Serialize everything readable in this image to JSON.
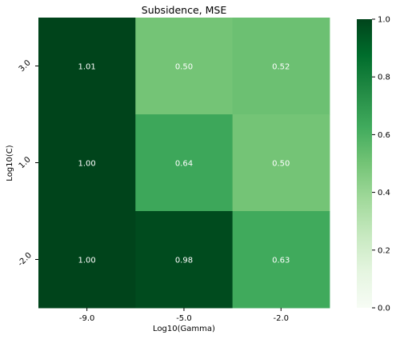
{
  "chart_data": {
    "type": "heatmap",
    "title": "Subsidence, MSE",
    "xlabel": "Log10(Gamma)",
    "ylabel": "Log10(C)",
    "x_categories": [
      "-9.0",
      "-5.0",
      "-2.0"
    ],
    "y_categories": [
      "3.0",
      "1.0",
      "-2.0"
    ],
    "values": [
      [
        1.01,
        0.5,
        0.52
      ],
      [
        1.0,
        0.64,
        0.5
      ],
      [
        1.0,
        0.98,
        0.63
      ]
    ],
    "value_labels": [
      [
        "1.01",
        "0.50",
        "0.52"
      ],
      [
        "1.00",
        "0.64",
        "0.50"
      ],
      [
        "1.00",
        "0.98",
        "0.63"
      ]
    ],
    "colorbar": {
      "min": 0.0,
      "max": 1.0,
      "ticks": [
        "0.0",
        "0.2",
        "0.4",
        "0.6",
        "0.8",
        "1.0"
      ],
      "colormap": "Greens"
    }
  }
}
